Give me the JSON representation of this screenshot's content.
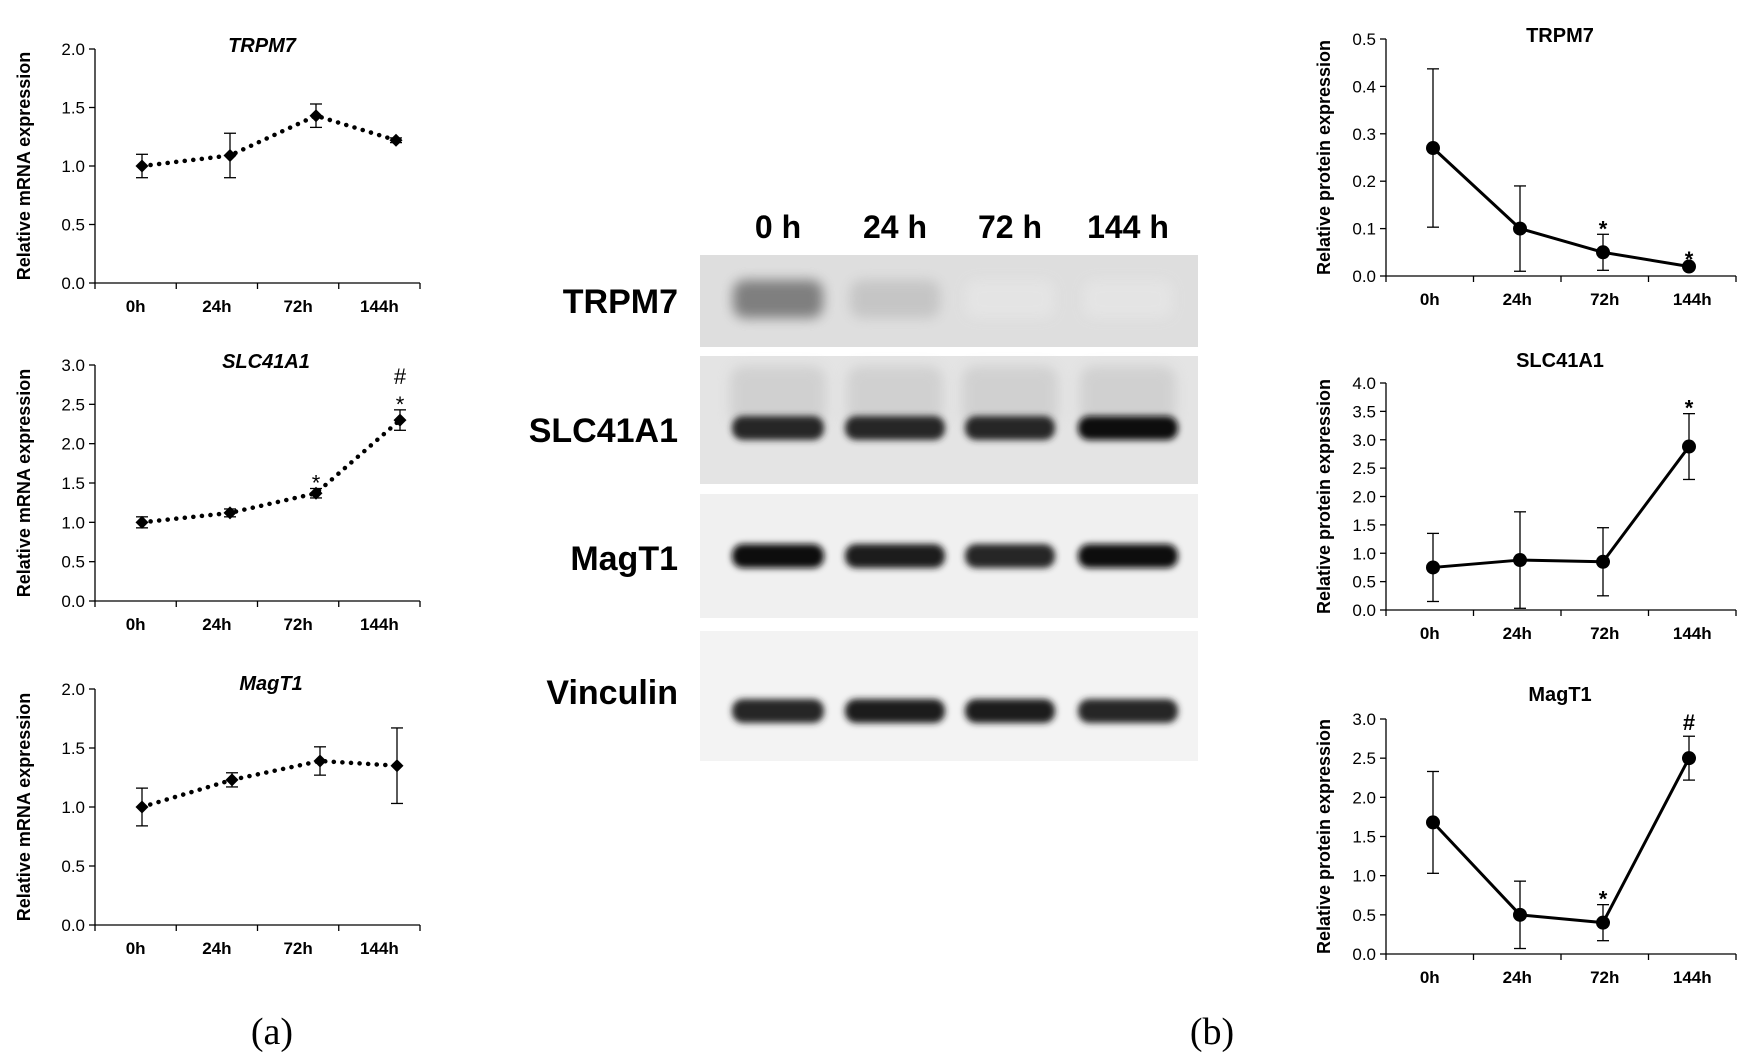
{
  "figure": {
    "panel_a_label": "(a)",
    "panel_b_label": "(b)"
  },
  "blot": {
    "lanes": [
      "0 h",
      "24 h",
      "72 h",
      "144 h"
    ],
    "rows": [
      {
        "label": "TRPM7",
        "band_intensity": [
          0.55,
          0.2,
          0.05,
          0.05
        ]
      },
      {
        "label": "SLC41A1",
        "band_intensity": [
          0.9,
          0.9,
          0.9,
          1.0
        ]
      },
      {
        "label": "MagT1",
        "band_intensity": [
          1.0,
          0.95,
          0.9,
          1.0
        ]
      },
      {
        "label": "Vinculin",
        "band_intensity": [
          0.9,
          0.95,
          0.95,
          0.9
        ]
      }
    ]
  },
  "chart_data": [
    {
      "id": "mrna_trpm7",
      "type": "line",
      "style": "dotted",
      "title": "TRPM7",
      "ylabel": "Relative mRNA expression",
      "categories": [
        "0h",
        "24h",
        "72h",
        "144h"
      ],
      "values": [
        1.0,
        1.09,
        1.43,
        1.22
      ],
      "errors": [
        0.1,
        0.19,
        0.1,
        0.02
      ],
      "ylim": [
        0,
        2.0
      ],
      "yticks": [
        "0.0",
        "0.5",
        "1.0",
        "1.5",
        "2.0"
      ],
      "annotations": []
    },
    {
      "id": "mrna_slc41a1",
      "type": "line",
      "style": "dotted",
      "title": "SLC41A1",
      "ylabel": "Relative mRNA expression",
      "categories": [
        "0h",
        "24h",
        "72h",
        "144h"
      ],
      "values": [
        1.0,
        1.12,
        1.37,
        2.3
      ],
      "errors": [
        0.07,
        0.05,
        0.06,
        0.13
      ],
      "ylim": [
        0,
        3.0
      ],
      "yticks": [
        "0.0",
        "0.5",
        "1.0",
        "1.5",
        "2.0",
        "2.5",
        "3.0"
      ],
      "annotations": [
        {
          "index": 2,
          "marks": [
            "*"
          ]
        },
        {
          "index": 3,
          "marks": [
            "#",
            "*"
          ]
        }
      ]
    },
    {
      "id": "mrna_magt1",
      "type": "line",
      "style": "dotted",
      "title": "MagT1",
      "ylabel": "Relative mRNA expression",
      "categories": [
        "0h",
        "24h",
        "72h",
        "144h"
      ],
      "values": [
        1.0,
        1.23,
        1.39,
        1.35
      ],
      "errors": [
        0.16,
        0.06,
        0.12,
        0.32
      ],
      "ylim": [
        0,
        2.0
      ],
      "yticks": [
        "0.0",
        "0.5",
        "1.0",
        "1.5",
        "2.0"
      ],
      "annotations": []
    },
    {
      "id": "protein_trpm7",
      "type": "line",
      "style": "solid",
      "title": "TRPM7",
      "ylabel": "Relative protein expression",
      "categories": [
        "0h",
        "24h",
        "72h",
        "144h"
      ],
      "values": [
        0.27,
        0.1,
        0.05,
        0.02
      ],
      "errors": [
        0.167,
        0.09,
        0.038,
        0.003
      ],
      "ylim": [
        0,
        0.5
      ],
      "yticks": [
        "0.0",
        "0.1",
        "0.2",
        "0.3",
        "0.4",
        "0.5"
      ],
      "annotations": [
        {
          "index": 2,
          "marks": [
            "*"
          ]
        },
        {
          "index": 3,
          "marks": [
            "*"
          ]
        }
      ]
    },
    {
      "id": "protein_slc41a1",
      "type": "line",
      "style": "solid",
      "title": "SLC41A1",
      "ylabel": "Relative protein expression",
      "categories": [
        "0h",
        "24h",
        "72h",
        "144h"
      ],
      "values": [
        0.75,
        0.88,
        0.85,
        2.88
      ],
      "errors": [
        0.6,
        0.85,
        0.6,
        0.58
      ],
      "ylim": [
        0,
        4.0
      ],
      "yticks": [
        "0.0",
        "0.5",
        "1.0",
        "1.5",
        "2.0",
        "2.5",
        "3.0",
        "3.5",
        "4.0"
      ],
      "annotations": [
        {
          "index": 3,
          "marks": [
            "*"
          ]
        }
      ]
    },
    {
      "id": "protein_magt1",
      "type": "line",
      "style": "solid",
      "title": "MagT1",
      "ylabel": "Relative protein expression",
      "categories": [
        "0h",
        "24h",
        "72h",
        "144h"
      ],
      "values": [
        1.68,
        0.5,
        0.4,
        2.5
      ],
      "errors": [
        0.65,
        0.43,
        0.23,
        0.28
      ],
      "ylim": [
        0,
        3.0
      ],
      "yticks": [
        "0.0",
        "0.5",
        "1.0",
        "1.5",
        "2.0",
        "2.5",
        "3.0"
      ],
      "annotations": [
        {
          "index": 2,
          "marks": [
            "*"
          ]
        },
        {
          "index": 3,
          "marks": [
            "#"
          ]
        }
      ]
    }
  ]
}
